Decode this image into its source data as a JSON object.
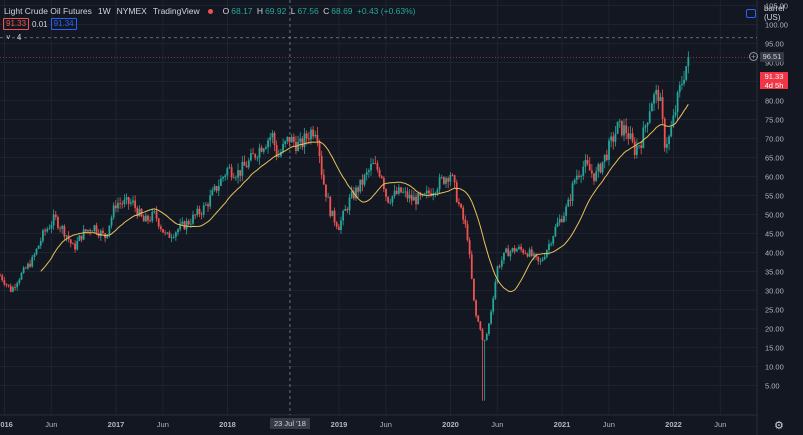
{
  "header": {
    "symbol": "Light Crude Oil Futures",
    "interval": "1W",
    "exchange": "NYMEX",
    "provider": "TradingView",
    "ohlc": [
      {
        "label": "O",
        "value": "68.17"
      },
      {
        "label": "H",
        "value": "69.92"
      },
      {
        "label": "L",
        "value": "67.56"
      },
      {
        "label": "C",
        "value": "68.69"
      }
    ],
    "change": "+0.43 (+0.63%)",
    "bid": "91.33",
    "spread": "0.01",
    "ask": "91.34",
    "indicator_toggle": "˅",
    "indicator_count": "4"
  },
  "axis": {
    "currency": "barrel (US)",
    "crosshair_price": "96.51",
    "last_price": "91.33",
    "countdown": "4d 5h",
    "crosshair_date": "23 Jul '18"
  },
  "colors": {
    "background": "#131722",
    "up": "#26a69a",
    "down": "#ef5350",
    "ma": "#e6c15a",
    "grid": "#1e2330",
    "text": "#b2b5be"
  },
  "chart_data": {
    "type": "candlestick",
    "interval": "weekly",
    "ylim": [
      0,
      110
    ],
    "y_ticks": [
      "5.00",
      "10.00",
      "15.00",
      "20.00",
      "25.00",
      "30.00",
      "35.00",
      "40.00",
      "45.00",
      "50.00",
      "55.00",
      "60.00",
      "65.00",
      "70.00",
      "75.00",
      "80.00",
      "85.00",
      "90.00",
      "95.00",
      "100.00",
      "105.00"
    ],
    "x_ticks": [
      {
        "label": "2016",
        "t": 2016.0
      },
      {
        "label": "Jun",
        "t": 2016.42
      },
      {
        "label": "2017",
        "t": 2017.0
      },
      {
        "label": "Jun",
        "t": 2017.42
      },
      {
        "label": "2018",
        "t": 2018.0
      },
      {
        "label": "2019",
        "t": 2019.0
      },
      {
        "label": "Jun",
        "t": 2019.42
      },
      {
        "label": "2020",
        "t": 2020.0
      },
      {
        "label": "Jun",
        "t": 2020.42
      },
      {
        "label": "2021",
        "t": 2021.0
      },
      {
        "label": "Jun",
        "t": 2021.42
      },
      {
        "label": "2022",
        "t": 2022.0
      },
      {
        "label": "Jun",
        "t": 2022.42
      }
    ],
    "price_keyframes": [
      [
        2015.96,
        34
      ],
      [
        2016.06,
        30
      ],
      [
        2016.12,
        33
      ],
      [
        2016.25,
        38
      ],
      [
        2016.35,
        45
      ],
      [
        2016.45,
        49
      ],
      [
        2016.55,
        45
      ],
      [
        2016.62,
        41
      ],
      [
        2016.7,
        45
      ],
      [
        2016.8,
        47
      ],
      [
        2016.9,
        44
      ],
      [
        2017.0,
        53
      ],
      [
        2017.15,
        53
      ],
      [
        2017.25,
        48
      ],
      [
        2017.35,
        50
      ],
      [
        2017.45,
        44
      ],
      [
        2017.55,
        46
      ],
      [
        2017.65,
        48
      ],
      [
        2017.8,
        52
      ],
      [
        2017.9,
        57
      ],
      [
        2018.0,
        62
      ],
      [
        2018.1,
        61
      ],
      [
        2018.2,
        64
      ],
      [
        2018.3,
        68
      ],
      [
        2018.4,
        71
      ],
      [
        2018.45,
        65
      ],
      [
        2018.55,
        70
      ],
      [
        2018.65,
        68
      ],
      [
        2018.75,
        72
      ],
      [
        2018.8,
        73
      ],
      [
        2018.85,
        60
      ],
      [
        2018.93,
        50
      ],
      [
        2019.0,
        47
      ],
      [
        2019.1,
        54
      ],
      [
        2019.2,
        58
      ],
      [
        2019.3,
        63
      ],
      [
        2019.38,
        61
      ],
      [
        2019.43,
        54
      ],
      [
        2019.55,
        56
      ],
      [
        2019.65,
        54
      ],
      [
        2019.75,
        54
      ],
      [
        2019.85,
        57
      ],
      [
        2020.0,
        61
      ],
      [
        2020.08,
        52
      ],
      [
        2020.15,
        45
      ],
      [
        2020.22,
        24
      ],
      [
        2020.27,
        20
      ],
      [
        2020.3,
        15
      ],
      [
        2020.35,
        22
      ],
      [
        2020.42,
        36
      ],
      [
        2020.5,
        40
      ],
      [
        2020.6,
        41
      ],
      [
        2020.7,
        40
      ],
      [
        2020.8,
        37
      ],
      [
        2020.88,
        42
      ],
      [
        2020.95,
        47
      ],
      [
        2021.05,
        52
      ],
      [
        2021.12,
        60
      ],
      [
        2021.2,
        63
      ],
      [
        2021.3,
        60
      ],
      [
        2021.4,
        66
      ],
      [
        2021.5,
        73
      ],
      [
        2021.58,
        72
      ],
      [
        2021.65,
        67
      ],
      [
        2021.72,
        70
      ],
      [
        2021.8,
        80
      ],
      [
        2021.87,
        82
      ],
      [
        2021.92,
        69
      ],
      [
        2021.96,
        70
      ],
      [
        2022.0,
        75
      ],
      [
        2022.05,
        82
      ],
      [
        2022.1,
        88
      ],
      [
        2022.14,
        91.33
      ]
    ],
    "ma_period": 20
  }
}
